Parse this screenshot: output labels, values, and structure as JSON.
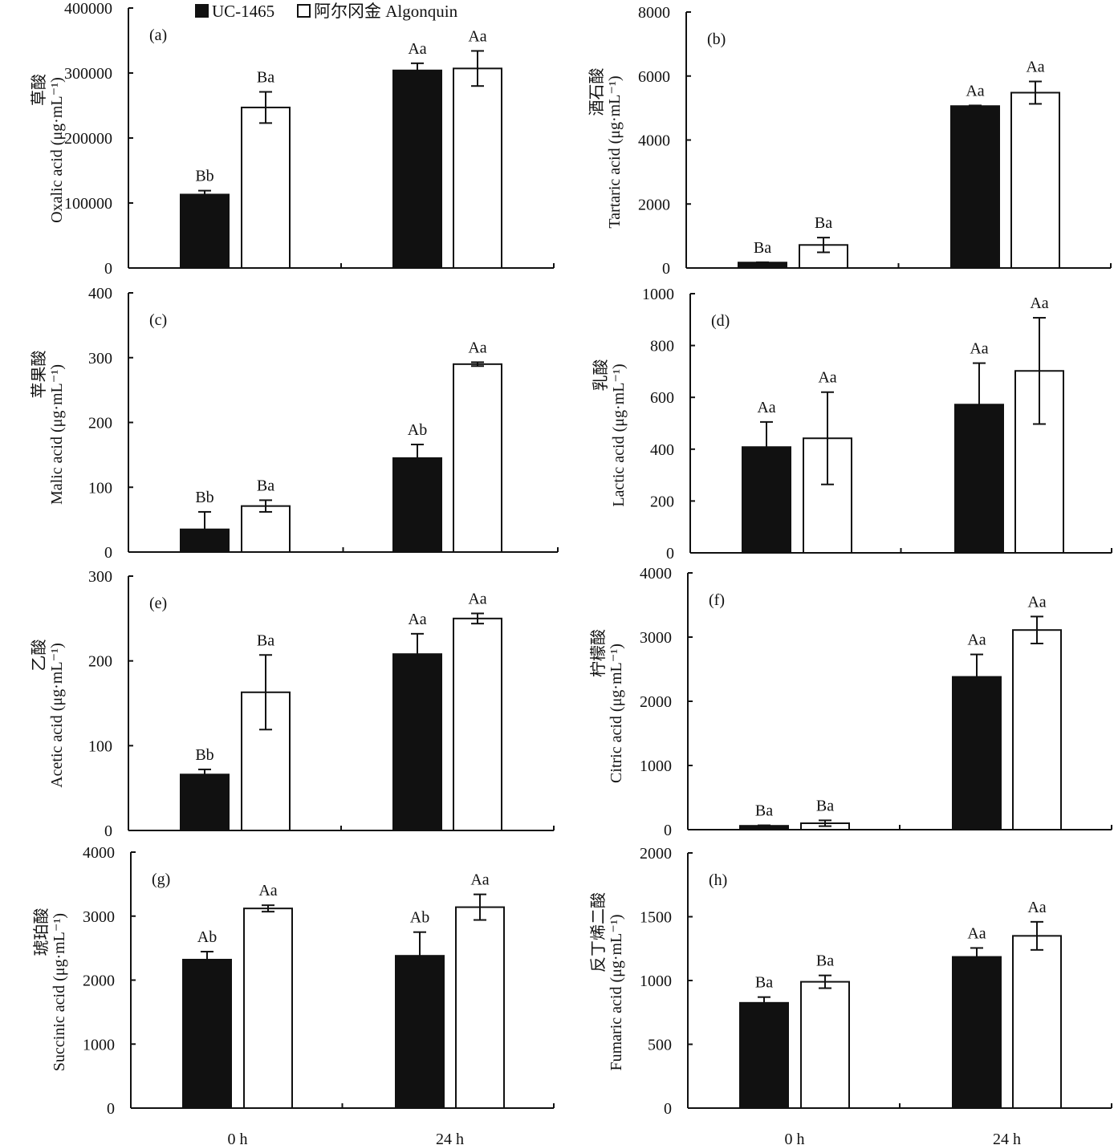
{
  "legend": {
    "items": [
      {
        "name": "UC-1465",
        "fill": "#111111"
      },
      {
        "name": "阿尔冈金 Algonquin",
        "fill": "#ffffff"
      }
    ]
  },
  "colors": {
    "bar_dark": "#111111",
    "bar_light": "#ffffff",
    "axis": "#111111"
  },
  "chart_data": [
    {
      "type": "bar",
      "panel": "(a)",
      "ylabel_cn": "草酸",
      "ylabel_en": "Oxalic acid (μg·mL⁻¹)",
      "categories": [
        "0 h",
        "24 h"
      ],
      "ylim": [
        0,
        400000
      ],
      "yticks": [
        0,
        100000,
        200000,
        300000,
        400000
      ],
      "series": [
        {
          "name": "UC-1465",
          "values": [
            113000,
            304000
          ],
          "errors": [
            6000,
            11000
          ],
          "labels": [
            "Bb",
            "Aa"
          ]
        },
        {
          "name": "阿尔冈金 Algonquin",
          "values": [
            247000,
            307000
          ],
          "errors": [
            24000,
            27000
          ],
          "labels": [
            "Ba",
            "Aa"
          ]
        }
      ]
    },
    {
      "type": "bar",
      "panel": "(b)",
      "ylabel_cn": "酒石酸",
      "ylabel_en": "Tartaric acid (μg·mL⁻¹)",
      "categories": [
        "0 h",
        "24 h"
      ],
      "ylim": [
        0,
        8000
      ],
      "yticks": [
        0,
        2000,
        4000,
        6000,
        8000
      ],
      "series": [
        {
          "name": "UC-1465",
          "values": [
            170,
            5060
          ],
          "errors": [
            10,
            20
          ],
          "labels": [
            "Ba",
            "Aa"
          ]
        },
        {
          "name": "阿尔冈金 Algonquin",
          "values": [
            720,
            5480
          ],
          "errors": [
            230,
            350
          ],
          "labels": [
            "Ba",
            "Aa"
          ]
        }
      ]
    },
    {
      "type": "bar",
      "panel": "(c)",
      "ylabel_cn": "苹果酸",
      "ylabel_en": "Malic acid (μg·mL⁻¹)",
      "categories": [
        "0 h",
        "24 h"
      ],
      "ylim": [
        0,
        400
      ],
      "yticks": [
        0,
        100,
        200,
        300,
        400
      ],
      "series": [
        {
          "name": "UC-1465",
          "values": [
            35,
            145
          ],
          "errors": [
            27,
            21
          ],
          "labels": [
            "Bb",
            "Ab"
          ]
        },
        {
          "name": "阿尔冈金 Algonquin",
          "values": [
            71,
            290
          ],
          "errors": [
            9,
            3
          ],
          "labels": [
            "Ba",
            "Aa"
          ]
        }
      ]
    },
    {
      "type": "bar",
      "panel": "(d)",
      "ylabel_cn": "乳酸",
      "ylabel_en": "Lactic acid (μg·mL⁻¹)",
      "categories": [
        "0 h",
        "24 h"
      ],
      "ylim": [
        0,
        1000
      ],
      "yticks": [
        0,
        200,
        400,
        600,
        800,
        1000
      ],
      "series": [
        {
          "name": "UC-1465",
          "values": [
            408,
            572
          ],
          "errors": [
            97,
            160
          ],
          "labels": [
            "Aa",
            "Aa"
          ]
        },
        {
          "name": "阿尔冈金 Algonquin",
          "values": [
            442,
            702
          ],
          "errors": [
            178,
            205
          ],
          "labels": [
            "Aa",
            "Aa"
          ]
        }
      ]
    },
    {
      "type": "bar",
      "panel": "(e)",
      "ylabel_cn": "乙酸",
      "ylabel_en": "Acetic acid (μg·mL⁻¹)",
      "categories": [
        "0 h",
        "24 h"
      ],
      "ylim": [
        0,
        300
      ],
      "yticks": [
        0,
        100,
        200,
        300
      ],
      "series": [
        {
          "name": "UC-1465",
          "values": [
            66,
            208
          ],
          "errors": [
            6,
            24
          ],
          "labels": [
            "Bb",
            "Aa"
          ]
        },
        {
          "name": "阿尔冈金 Algonquin",
          "values": [
            163,
            250
          ],
          "errors": [
            44,
            6
          ],
          "labels": [
            "Ba",
            "Aa"
          ]
        }
      ]
    },
    {
      "type": "bar",
      "panel": "(f)",
      "ylabel_cn": "柠檬酸",
      "ylabel_en": "Citric acid (μg·mL⁻¹)",
      "categories": [
        "0 h",
        "24 h"
      ],
      "ylim": [
        0,
        4000
      ],
      "yticks": [
        0,
        1000,
        2000,
        3000,
        4000
      ],
      "series": [
        {
          "name": "UC-1465",
          "values": [
            60,
            2380
          ],
          "errors": [
            8,
            350
          ],
          "labels": [
            "Ba",
            "Aa"
          ]
        },
        {
          "name": "阿尔冈金 Algonquin",
          "values": [
            100,
            3110
          ],
          "errors": [
            45,
            210
          ],
          "labels": [
            "Ba",
            "Aa"
          ]
        }
      ]
    },
    {
      "type": "bar",
      "panel": "(g)",
      "ylabel_cn": "琥珀酸",
      "ylabel_en": "Succinic acid (μg·mL⁻¹)",
      "categories": [
        "0 h",
        "24 h"
      ],
      "ylim": [
        0,
        4000
      ],
      "yticks": [
        0,
        1000,
        2000,
        3000,
        4000
      ],
      "series": [
        {
          "name": "UC-1465",
          "values": [
            2320,
            2380
          ],
          "errors": [
            125,
            370
          ],
          "labels": [
            "Ab",
            "Ab"
          ]
        },
        {
          "name": "阿尔冈金 Algonquin",
          "values": [
            3120,
            3140
          ],
          "errors": [
            50,
            200
          ],
          "labels": [
            "Aa",
            "Aa"
          ]
        }
      ]
    },
    {
      "type": "bar",
      "panel": "(h)",
      "ylabel_cn": "反丁烯二酸",
      "ylabel_en": "Fumaric acid (μg·mL⁻¹)",
      "categories": [
        "0 h",
        "24 h"
      ],
      "ylim": [
        0,
        2000
      ],
      "yticks": [
        0,
        500,
        1000,
        1500,
        2000
      ],
      "series": [
        {
          "name": "UC-1465",
          "values": [
            825,
            1185
          ],
          "errors": [
            45,
            70
          ],
          "labels": [
            "Ba",
            "Aa"
          ]
        },
        {
          "name": "阿尔冈金 Algonquin",
          "values": [
            990,
            1350
          ],
          "errors": [
            50,
            110
          ],
          "labels": [
            "Ba",
            "Aa"
          ]
        }
      ]
    }
  ]
}
